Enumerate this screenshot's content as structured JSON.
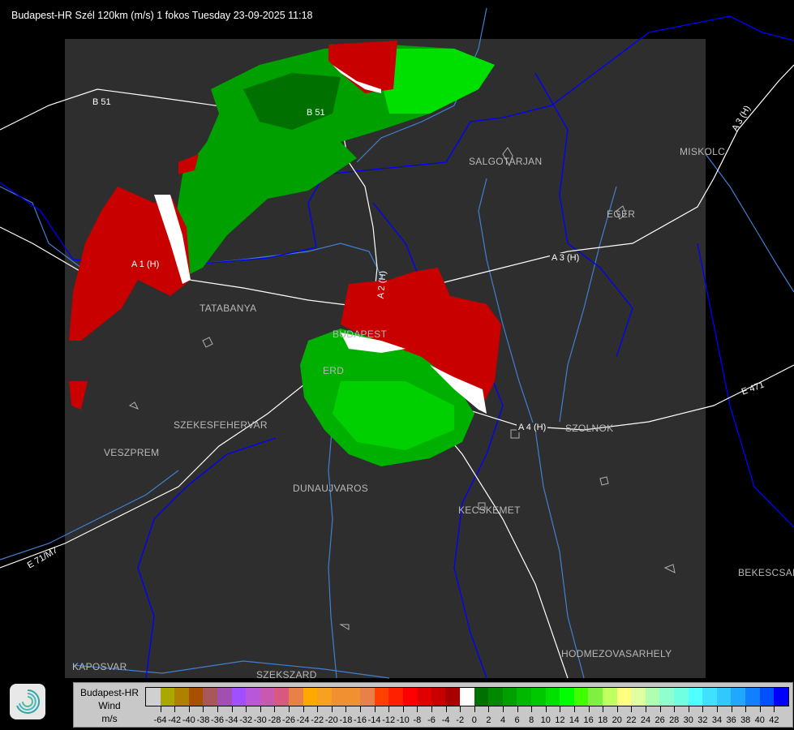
{
  "title": "Budapest-HR Szél 120km (m/s) 1 fokos Tuesday 23-09-2025 11:18",
  "map": {
    "cities": [
      "SALGOTARJAN",
      "MISKOLC",
      "EGER",
      "TATABANYA",
      "BUDAPEST",
      "ERD",
      "SZEKESFEHERVAR",
      "VESZPREM",
      "DUNAUJVAROS",
      "KECSKEMET",
      "SZOLNOK",
      "BEKESCSABA",
      "HODMEZOVASARHELY",
      "KAPOSVAR",
      "SZEKSZARD"
    ],
    "roads": [
      "B 51",
      "B 51",
      "A 3 (H)",
      "A 3 (H)",
      "A 1 (H)",
      "A 2 (H)",
      "A 4 (H)",
      "E 471",
      "E 71/M7"
    ],
    "colors": {
      "background": "#000000",
      "radar_area": "#2e2e2e",
      "rivers": "#4080d0",
      "borders": "#0000ff",
      "roads": "#ffffff",
      "towns": "#b8b8b8"
    }
  },
  "legend": {
    "line1": "Budapest-HR",
    "line2": "Wind",
    "line3": "m/s",
    "labels": [
      "-64",
      "-42",
      "-40",
      "-38",
      "-36",
      "-34",
      "-32",
      "-30",
      "-28",
      "-26",
      "-24",
      "-22",
      "-20",
      "-18",
      "-16",
      "-14",
      "-12",
      "-10",
      "-8",
      "-6",
      "-4",
      "-2",
      "0",
      "2",
      "4",
      "6",
      "8",
      "10",
      "12",
      "14",
      "16",
      "18",
      "20",
      "22",
      "24",
      "26",
      "28",
      "30",
      "32",
      "34",
      "36",
      "38",
      "40",
      "42"
    ],
    "colors": [
      "#d0d0d0",
      "#aaa800",
      "#b08000",
      "#a85000",
      "#a85858",
      "#a050b0",
      "#a050ff",
      "#b858d8",
      "#c858b0",
      "#d85880",
      "#e88048",
      "#ffa800",
      "#f8a020",
      "#f09030",
      "#f09030",
      "#e88048",
      "#ff4000",
      "#ff2000",
      "#ff0000",
      "#e00000",
      "#c80000",
      "#a80000",
      "#ffffff",
      "#007000",
      "#008800",
      "#00a000",
      "#00b800",
      "#00c800",
      "#00e000",
      "#00ff00",
      "#40ff00",
      "#80f040",
      "#c0ff60",
      "#ffff80",
      "#e0ffa0",
      "#b0ffb0",
      "#90ffd0",
      "#70ffe0",
      "#50ffff",
      "#40e0ff",
      "#30c8ff",
      "#20a8ff",
      "#1080ff",
      "#0050ff",
      "#0000ff"
    ]
  }
}
